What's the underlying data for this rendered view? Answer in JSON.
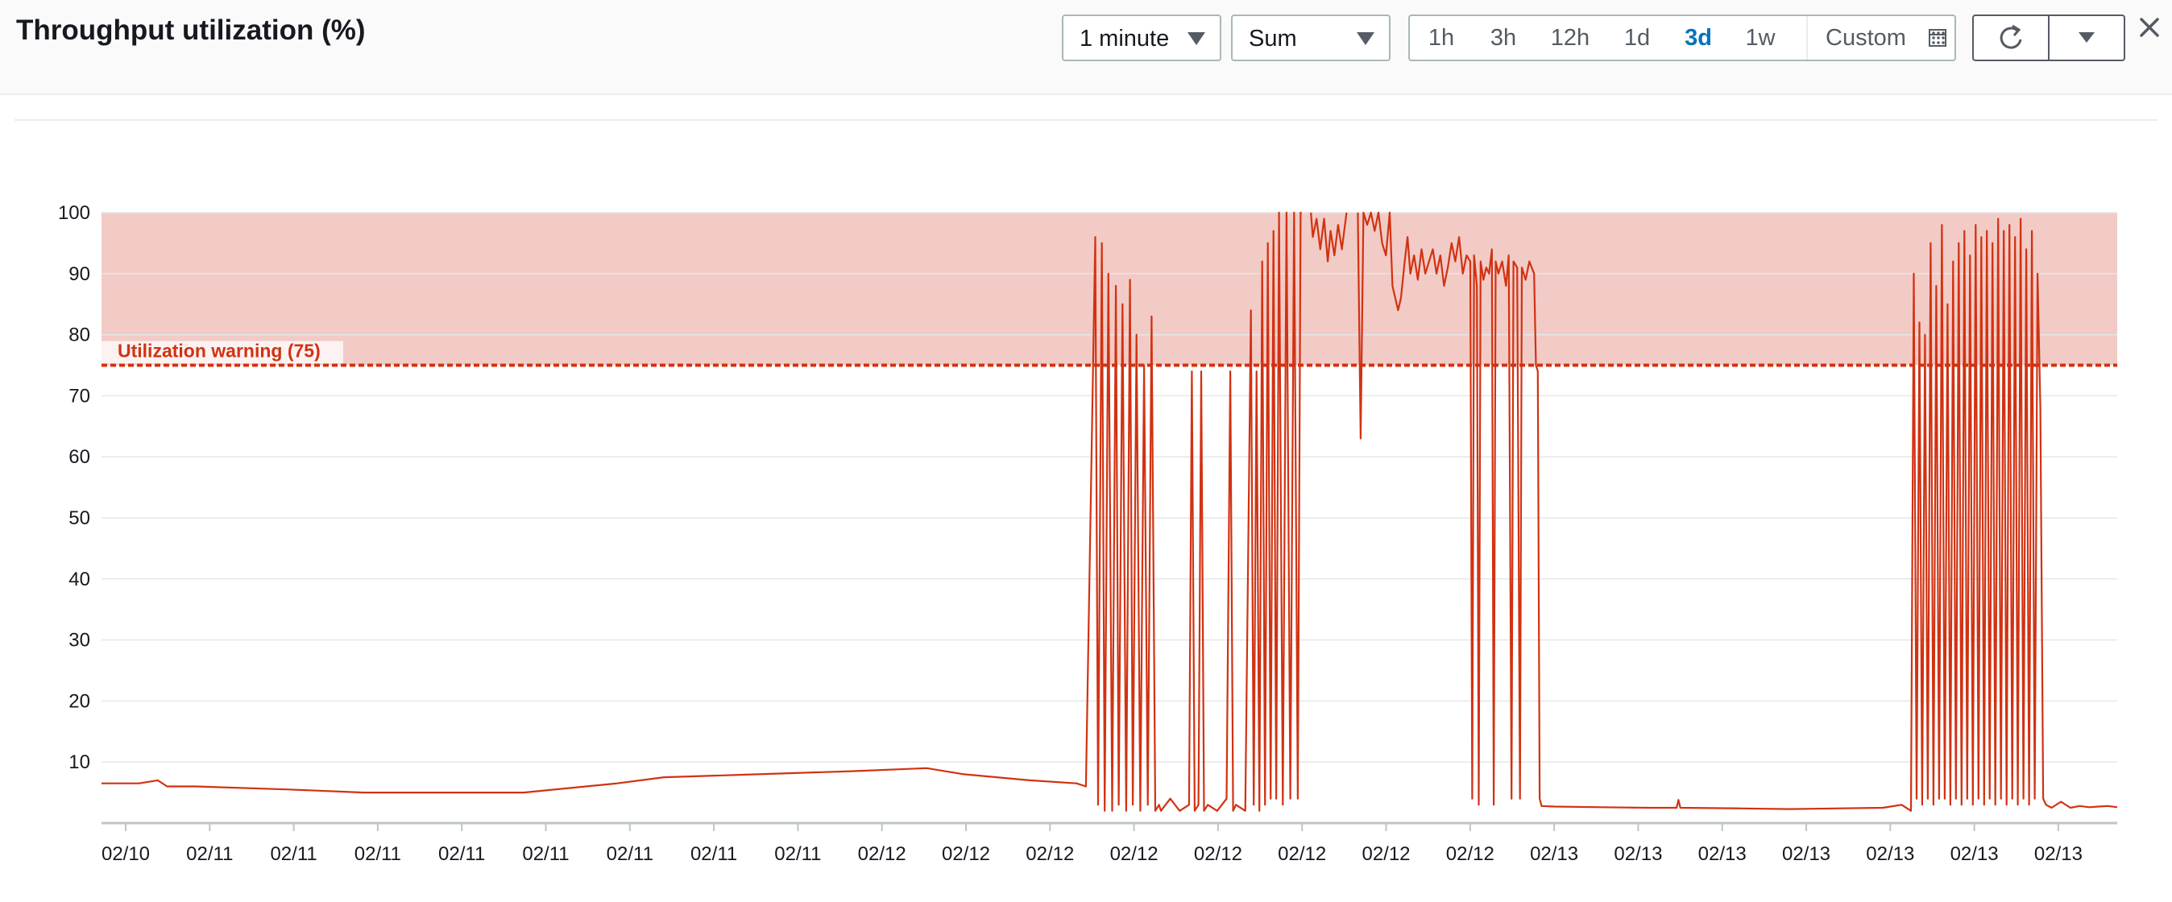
{
  "header": {
    "title": "Throughput utilization (%)",
    "period": "1 minute",
    "statistic": "Sum",
    "ranges": [
      "1h",
      "3h",
      "12h",
      "1d",
      "3d",
      "1w"
    ],
    "active_range": "3d",
    "custom_label": "Custom",
    "icons": {
      "calendar": "calendar-icon",
      "refresh": "refresh-icon",
      "dropdown": "caret-down-icon",
      "close": "close-icon"
    }
  },
  "colors": {
    "series": "#d13212",
    "alarm_band": "#f2cbc6",
    "accent": "#0073bb"
  },
  "chart_data": {
    "type": "line",
    "x_ticks": [
      "02/10",
      "02/11",
      "02/11",
      "02/11",
      "02/11",
      "02/11",
      "02/11",
      "02/11",
      "02/11",
      "02/12",
      "02/12",
      "02/12",
      "02/12",
      "02/12",
      "02/12",
      "02/12",
      "02/12",
      "02/13",
      "02/13",
      "02/13",
      "02/13",
      "02/13",
      "02/13",
      "02/13"
    ],
    "y_ticks": [
      10,
      20,
      30,
      40,
      50,
      60,
      70,
      80,
      90,
      100
    ],
    "ylim": [
      0,
      100
    ],
    "grid": true,
    "threshold": {
      "value": 75,
      "label": "Utilization warning (75)",
      "band": [
        75,
        100
      ]
    },
    "series": [
      {
        "values": [
          [
            0,
            6.5
          ],
          [
            4,
            6.5
          ],
          [
            6,
            7
          ],
          [
            7,
            6
          ],
          [
            10,
            6
          ],
          [
            20,
            5.5
          ],
          [
            28,
            5
          ],
          [
            35,
            5
          ],
          [
            45,
            5
          ],
          [
            55,
            6.5
          ],
          [
            60,
            7.5
          ],
          [
            70,
            8
          ],
          [
            80,
            8.5
          ],
          [
            88,
            9
          ],
          [
            92,
            8
          ],
          [
            99,
            7
          ],
          [
            104,
            6.5
          ],
          [
            105,
            6
          ],
          [
            106,
            96
          ],
          [
            106.3,
            3
          ],
          [
            106.7,
            95
          ],
          [
            107,
            2
          ],
          [
            107.4,
            90
          ],
          [
            107.8,
            2
          ],
          [
            108.2,
            88
          ],
          [
            108.5,
            3
          ],
          [
            108.9,
            85
          ],
          [
            109.3,
            2
          ],
          [
            109.7,
            89
          ],
          [
            110,
            3
          ],
          [
            110.4,
            80
          ],
          [
            110.8,
            2
          ],
          [
            111.2,
            75
          ],
          [
            111.6,
            3
          ],
          [
            112,
            83
          ],
          [
            112.4,
            2
          ],
          [
            112.8,
            3
          ],
          [
            113,
            2
          ],
          [
            114,
            4
          ],
          [
            115,
            2
          ],
          [
            116,
            3
          ],
          [
            116.3,
            74
          ],
          [
            116.6,
            2
          ],
          [
            117,
            3
          ],
          [
            117.3,
            74
          ],
          [
            117.6,
            2
          ],
          [
            118,
            3
          ],
          [
            119,
            2
          ],
          [
            120,
            4
          ],
          [
            120.4,
            74
          ],
          [
            120.7,
            2
          ],
          [
            121,
            3
          ],
          [
            122,
            2
          ],
          [
            122.6,
            84
          ],
          [
            122.9,
            3
          ],
          [
            123.2,
            74
          ],
          [
            123.5,
            2
          ],
          [
            123.8,
            92
          ],
          [
            124.1,
            3
          ],
          [
            124.4,
            95
          ],
          [
            124.7,
            4
          ],
          [
            125,
            97
          ],
          [
            125.3,
            4
          ],
          [
            125.6,
            100
          ],
          [
            126,
            3
          ],
          [
            126.4,
            100
          ],
          [
            126.8,
            4
          ],
          [
            127.2,
            100
          ],
          [
            127.6,
            4
          ],
          [
            127.9,
            100
          ],
          [
            128,
            100
          ],
          [
            128,
            null
          ],
          [
            129,
            100
          ],
          [
            129.2,
            96
          ],
          [
            129.6,
            99
          ],
          [
            130,
            94
          ],
          [
            130.4,
            99
          ],
          [
            130.8,
            92
          ],
          [
            131.1,
            97
          ],
          [
            131.5,
            93
          ],
          [
            131.9,
            98
          ],
          [
            132.3,
            94
          ],
          [
            132.8,
            100
          ],
          [
            132.8,
            null
          ],
          [
            134,
            100
          ],
          [
            134.3,
            63
          ],
          [
            134.6,
            100
          ],
          [
            135,
            98
          ],
          [
            135.4,
            100
          ],
          [
            135.8,
            97
          ],
          [
            136.2,
            100
          ],
          [
            136.6,
            95
          ],
          [
            137,
            93
          ],
          [
            137.4,
            100
          ],
          [
            137.7,
            88
          ],
          [
            138,
            86
          ],
          [
            138.3,
            84
          ],
          [
            138.6,
            86
          ],
          [
            139,
            92
          ],
          [
            139.3,
            96
          ],
          [
            139.6,
            90
          ],
          [
            140,
            93
          ],
          [
            140.4,
            89
          ],
          [
            140.8,
            94
          ],
          [
            141.2,
            90
          ],
          [
            141.6,
            92
          ],
          [
            142,
            94
          ],
          [
            142.4,
            90
          ],
          [
            142.8,
            93
          ],
          [
            143.2,
            88
          ],
          [
            143.6,
            91
          ],
          [
            144,
            95
          ],
          [
            144.4,
            92
          ],
          [
            144.8,
            96
          ],
          [
            145.2,
            90
          ],
          [
            145.6,
            93
          ],
          [
            146,
            92
          ],
          [
            146.2,
            4
          ],
          [
            146.4,
            93
          ],
          [
            146.7,
            88
          ],
          [
            146.9,
            3
          ],
          [
            147.1,
            92
          ],
          [
            147.4,
            89
          ],
          [
            147.7,
            91
          ],
          [
            148,
            90
          ],
          [
            148.3,
            94
          ],
          [
            148.5,
            3
          ],
          [
            148.7,
            92
          ],
          [
            149,
            90
          ],
          [
            149.4,
            92
          ],
          [
            149.8,
            88
          ],
          [
            150.1,
            93
          ],
          [
            150.4,
            4
          ],
          [
            150.6,
            92
          ],
          [
            151,
            91
          ],
          [
            151.3,
            4
          ],
          [
            151.5,
            91
          ],
          [
            151.9,
            89
          ],
          [
            152.3,
            92
          ],
          [
            152.8,
            90
          ],
          [
            153,
            75
          ],
          [
            153.2,
            74
          ],
          [
            153.4,
            4
          ],
          [
            153.6,
            2.8
          ],
          [
            155,
            2.7
          ],
          [
            160,
            2.6
          ],
          [
            165,
            2.5
          ],
          [
            168,
            2.5
          ],
          [
            168.2,
            3.8
          ],
          [
            168.4,
            2.5
          ],
          [
            175,
            2.4
          ],
          [
            180,
            2.3
          ],
          [
            185,
            2.4
          ],
          [
            190,
            2.5
          ],
          [
            192,
            3
          ],
          [
            193,
            2
          ],
          [
            193.3,
            90
          ],
          [
            193.6,
            4
          ],
          [
            193.9,
            82
          ],
          [
            194.2,
            3
          ],
          [
            194.5,
            80
          ],
          [
            194.8,
            4
          ],
          [
            195.1,
            95
          ],
          [
            195.4,
            3
          ],
          [
            195.7,
            88
          ],
          [
            196,
            4
          ],
          [
            196.3,
            98
          ],
          [
            196.6,
            4
          ],
          [
            196.9,
            85
          ],
          [
            197.2,
            3
          ],
          [
            197.5,
            92
          ],
          [
            197.8,
            4
          ],
          [
            198.1,
            95
          ],
          [
            198.4,
            3
          ],
          [
            198.7,
            97
          ],
          [
            199,
            4
          ],
          [
            199.3,
            93
          ],
          [
            199.6,
            3
          ],
          [
            199.9,
            98
          ],
          [
            200.2,
            4
          ],
          [
            200.5,
            96
          ],
          [
            200.8,
            3
          ],
          [
            201.1,
            97
          ],
          [
            201.4,
            4
          ],
          [
            201.7,
            95
          ],
          [
            202,
            3
          ],
          [
            202.3,
            99
          ],
          [
            202.6,
            4
          ],
          [
            202.9,
            97
          ],
          [
            203.2,
            3
          ],
          [
            203.5,
            98
          ],
          [
            203.8,
            4
          ],
          [
            204.1,
            96
          ],
          [
            204.4,
            3
          ],
          [
            204.7,
            99
          ],
          [
            205,
            4
          ],
          [
            205.3,
            94
          ],
          [
            205.6,
            3
          ],
          [
            205.9,
            97
          ],
          [
            206.2,
            4
          ],
          [
            206.5,
            90
          ],
          [
            206.8,
            68
          ],
          [
            207.1,
            4
          ],
          [
            207.4,
            3
          ],
          [
            208,
            2.5
          ],
          [
            209,
            3.5
          ],
          [
            210,
            2.5
          ],
          [
            211,
            2.8
          ],
          [
            212,
            2.6
          ],
          [
            213,
            2.7
          ],
          [
            214,
            2.8
          ],
          [
            215,
            2.6
          ]
        ]
      }
    ]
  }
}
